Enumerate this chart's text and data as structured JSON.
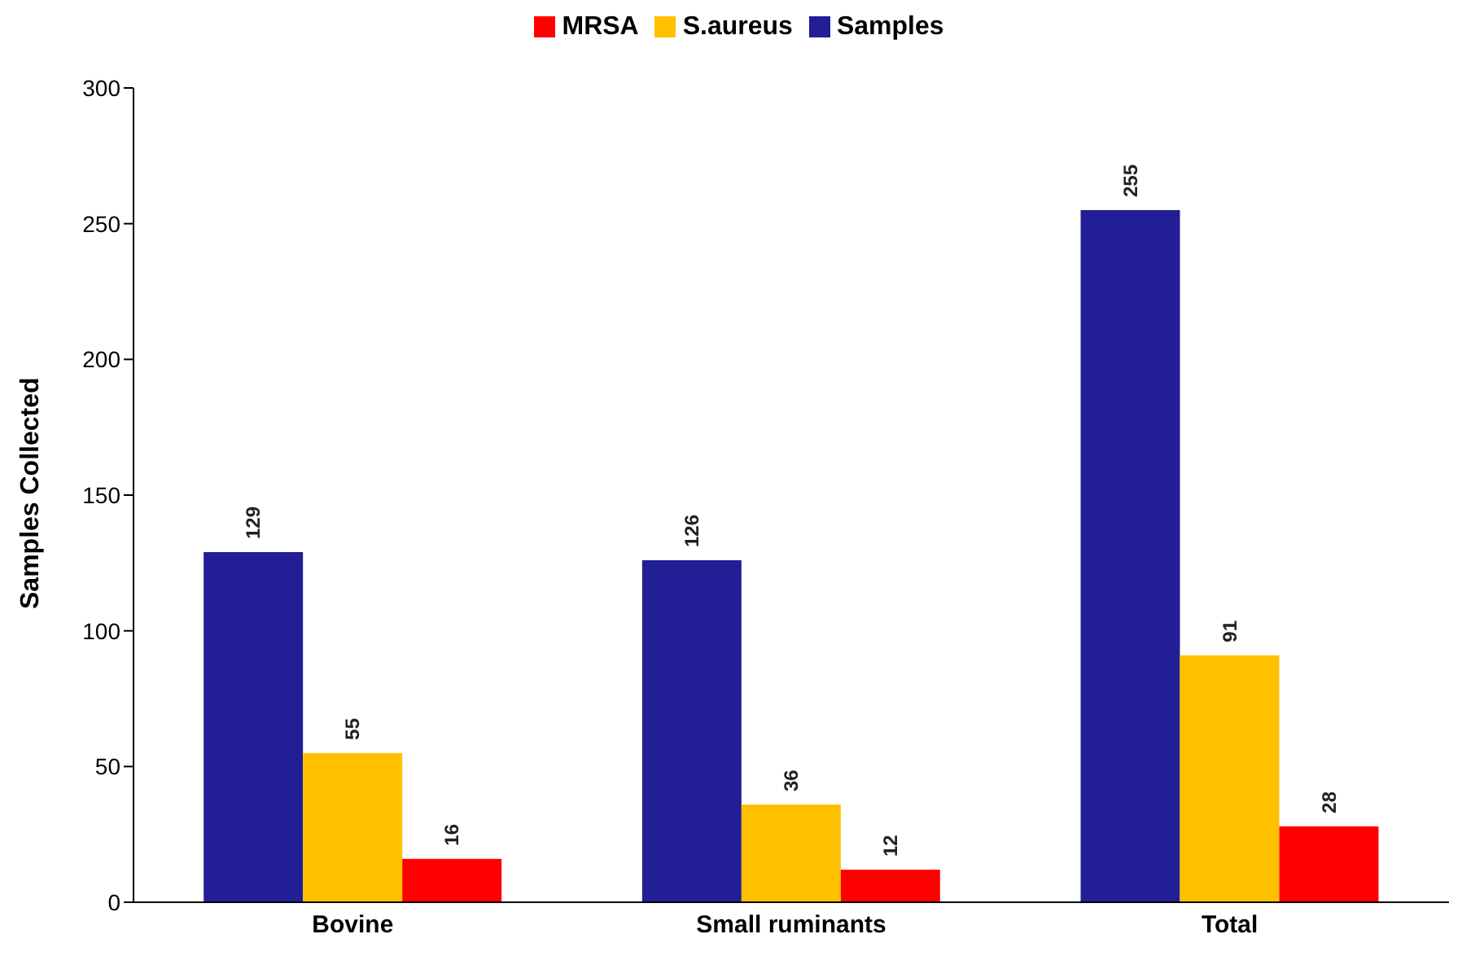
{
  "chart_data": {
    "type": "bar",
    "ylabel": "Samples Collected",
    "categories": [
      "Bovine",
      "Small ruminants",
      "Total"
    ],
    "series": [
      {
        "name": "Samples",
        "color": "#221e95",
        "values": [
          129,
          126,
          255
        ]
      },
      {
        "name": "S.aureus",
        "color": "#ffc000",
        "values": [
          55,
          36,
          91
        ]
      },
      {
        "name": "MRSA",
        "color": "#ff0000",
        "values": [
          16,
          12,
          28
        ]
      }
    ],
    "ylim": [
      0,
      300
    ],
    "yticks": [
      0,
      50,
      100,
      150,
      200,
      250,
      300
    ],
    "grid": false,
    "legend": "top",
    "data_labels": true
  }
}
